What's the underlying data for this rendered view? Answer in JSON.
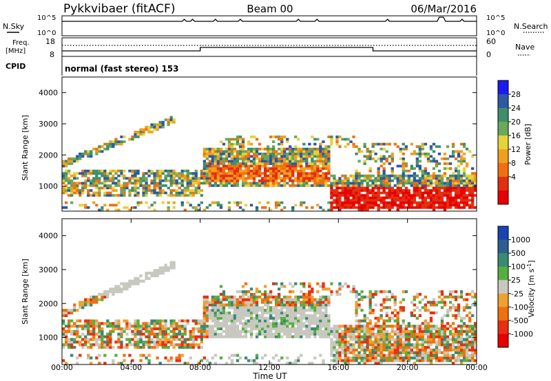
{
  "header": {
    "title": "Pykkvibaer (fitACF)",
    "beam": "Beam 00",
    "date": "06/Mar/2016"
  },
  "top_panels": {
    "nsky_label": "N.Sky",
    "nsearch_label": "N.Search",
    "nsky_ticks": [
      "10^5",
      "10^0"
    ],
    "nsearch_ticks": [
      "10^5",
      "10^0"
    ],
    "freq_label": "Freq.",
    "freq_unit": "[MHz]",
    "freq_ticks": [
      "18",
      "8"
    ],
    "nave_label": "Nave",
    "nave_ticks": [
      "60",
      "0"
    ],
    "cpid_label": "CPID",
    "cpid_text": "normal (fast stereo) 153"
  },
  "colors": {
    "power": [
      "#1c1cf0",
      "#2d58a8",
      "#3f8e6a",
      "#6aa85a",
      "#e6d23a",
      "#f0a020",
      "#f07010",
      "#e03010",
      "#e80000"
    ],
    "velocity": [
      "#1a44b0",
      "#2b6090",
      "#3a8a70",
      "#56b040",
      "#c8c8c0",
      "#f0a030",
      "#f07010",
      "#e83010",
      "#e80000"
    ]
  },
  "chart_data": [
    {
      "type": "heatmap",
      "name": "Power",
      "ylabel": "Slant Range [km]",
      "ylim": [
        200,
        4500
      ],
      "yticks": [
        "4000",
        "3000",
        "2000",
        "1000"
      ],
      "colorbar_label": "Power [dB]",
      "colorbar_ticks": [
        "28",
        "24",
        "20",
        "16",
        "12",
        "8",
        "4"
      ],
      "xlim": [
        "00:00",
        "24:00"
      ]
    },
    {
      "type": "heatmap",
      "name": "Velocity",
      "ylabel": "Slant Range [km]",
      "ylim": [
        200,
        4500
      ],
      "yticks": [
        "4000",
        "3000",
        "2000",
        "1000"
      ],
      "colorbar_label": "Velocity [m s^-1]",
      "colorbar_ticks": [
        "1000",
        "500",
        "100",
        "25",
        "-25",
        "-100",
        "-500",
        "-1000"
      ],
      "xlabel": "Time UT",
      "xticks": [
        "00:00",
        "04:00",
        "08:00",
        "12:00",
        "16:00",
        "20:00",
        "00:00"
      ],
      "xlim": [
        "00:00",
        "24:00"
      ]
    }
  ]
}
